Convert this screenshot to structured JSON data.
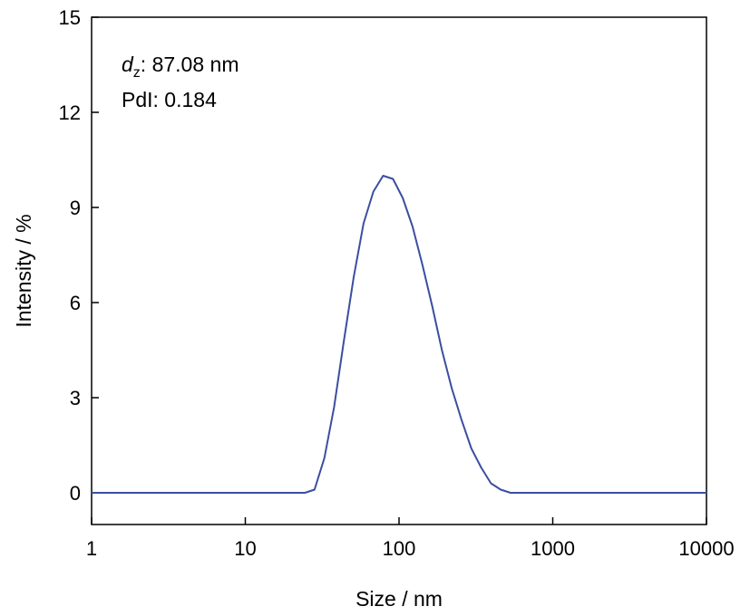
{
  "chart_data": {
    "type": "line",
    "x_scale": "log",
    "xlabel": "Size / nm",
    "ylabel": "Intensity / %",
    "xlim": [
      1,
      10000
    ],
    "ylim": [
      -1,
      15
    ],
    "x_ticks": [
      1,
      10,
      100,
      1000,
      10000
    ],
    "x_tick_labels": [
      "1",
      "10",
      "100",
      "1000",
      "10000"
    ],
    "y_ticks": [
      0,
      3,
      6,
      9,
      12,
      15
    ],
    "y_tick_labels": [
      "0",
      "3",
      "6",
      "9",
      "12",
      "15"
    ],
    "grid": false,
    "legend": "none",
    "annotations": {
      "dz_symbol": "d",
      "dz_subscript": "z",
      "dz_value": ": 87.08 nm",
      "pdi": "PdI: 0.184"
    },
    "series": [
      {
        "color": "#3b4ea0",
        "x": [
          1,
          24.4,
          28.2,
          32.7,
          37.8,
          43.8,
          50.7,
          58.8,
          68.1,
          78.8,
          91.3,
          105.7,
          122.4,
          141.8,
          164.2,
          190.1,
          220.2,
          255.0,
          295.3,
          342.0,
          396.1,
          458.7,
          531.2,
          10000
        ],
        "y": [
          0,
          0,
          0.1,
          1.1,
          2.7,
          4.8,
          6.8,
          8.5,
          9.5,
          10.0,
          9.9,
          9.3,
          8.4,
          7.2,
          5.9,
          4.5,
          3.3,
          2.3,
          1.4,
          0.8,
          0.3,
          0.1,
          0,
          0
        ]
      }
    ]
  }
}
